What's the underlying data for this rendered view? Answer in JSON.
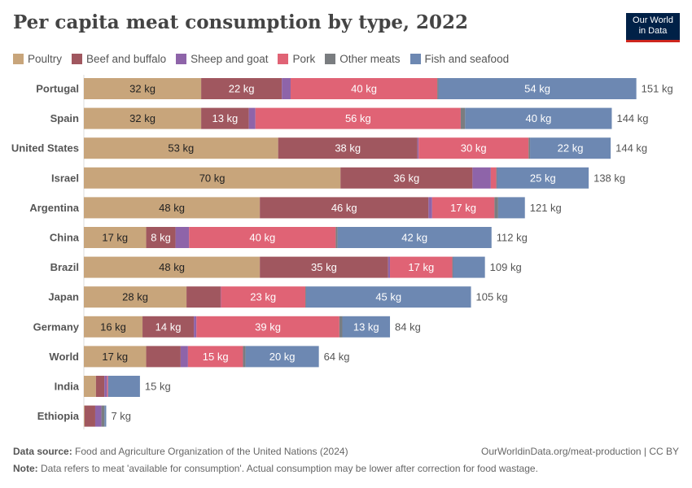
{
  "header": {
    "title": "Per capita meat consumption by type, 2022",
    "logo": "Our World in Data"
  },
  "footer": {
    "source_label": "Data source:",
    "source": "Food and Agriculture Organization of the United Nations (2024)",
    "link": "OurWorldinData.org/meat-production | CC BY",
    "note_label": "Note:",
    "note": "Data refers to meat 'available for consumption'. Actual consumption may be lower after correction for food wastage."
  },
  "chart_data": {
    "type": "bar",
    "orientation": "horizontal",
    "stacked": true,
    "unit": "kg",
    "legend": "top",
    "series": [
      {
        "name": "Poultry",
        "color": "#c8a57b"
      },
      {
        "name": "Beef and buffalo",
        "color": "#a0575f"
      },
      {
        "name": "Sheep and goat",
        "color": "#8e64a9"
      },
      {
        "name": "Pork",
        "color": "#e06375"
      },
      {
        "name": "Other meats",
        "color": "#7a7d80"
      },
      {
        "name": "Fish and seafood",
        "color": "#6d88b2"
      }
    ],
    "categories": [
      "Portugal",
      "Spain",
      "United States",
      "Israel",
      "Argentina",
      "China",
      "Brazil",
      "Japan",
      "Germany",
      "World",
      "India",
      "Ethiopia"
    ],
    "values": [
      [
        32,
        22,
        2.4,
        40,
        0.3,
        54
      ],
      [
        32,
        13,
        1.8,
        56,
        1.2,
        40
      ],
      [
        53,
        38,
        0.3,
        30,
        0.4,
        22
      ],
      [
        70,
        36,
        5,
        1.5,
        0.2,
        25
      ],
      [
        48,
        46,
        1,
        17,
        1,
        7.3
      ],
      [
        17,
        8,
        3.7,
        40,
        0.5,
        42
      ],
      [
        48,
        35,
        0.5,
        17,
        0.2,
        8.7
      ],
      [
        28,
        9.3,
        0.1,
        23,
        0.2,
        45
      ],
      [
        16,
        14,
        0.7,
        39,
        0.8,
        13
      ],
      [
        17,
        9.4,
        2,
        15,
        0.7,
        20
      ],
      [
        3.3,
        2.3,
        0.7,
        0.3,
        0,
        8.7
      ],
      [
        0.2,
        2.9,
        1.7,
        0,
        0.8,
        0.5
      ]
    ],
    "segment_labels": [
      [
        "32 kg",
        "22 kg",
        "",
        "40 kg",
        "",
        "54 kg"
      ],
      [
        "32 kg",
        "13 kg",
        "",
        "56 kg",
        "",
        "40 kg"
      ],
      [
        "53 kg",
        "38 kg",
        "",
        "30 kg",
        "",
        "22 kg"
      ],
      [
        "70 kg",
        "36 kg",
        "",
        "",
        "",
        "25 kg"
      ],
      [
        "48 kg",
        "46 kg",
        "",
        "17 kg",
        "",
        ""
      ],
      [
        "17 kg",
        "8 kg",
        "",
        "40 kg",
        "",
        "42 kg"
      ],
      [
        "48 kg",
        "35 kg",
        "",
        "17 kg",
        "",
        ""
      ],
      [
        "28 kg",
        "",
        "",
        "23 kg",
        "",
        "45 kg"
      ],
      [
        "16 kg",
        "14 kg",
        "",
        "39 kg",
        "",
        "13 kg"
      ],
      [
        "17 kg",
        "",
        "",
        "15 kg",
        "",
        "20 kg"
      ],
      [
        "",
        "",
        "",
        "",
        "",
        ""
      ],
      [
        "",
        "",
        "",
        "",
        "",
        ""
      ]
    ],
    "totals": [
      "151 kg",
      "144 kg",
      "144 kg",
      "138 kg",
      "121 kg",
      "112 kg",
      "109 kg",
      "105 kg",
      "84 kg",
      "64 kg",
      "15 kg",
      "7 kg"
    ]
  }
}
